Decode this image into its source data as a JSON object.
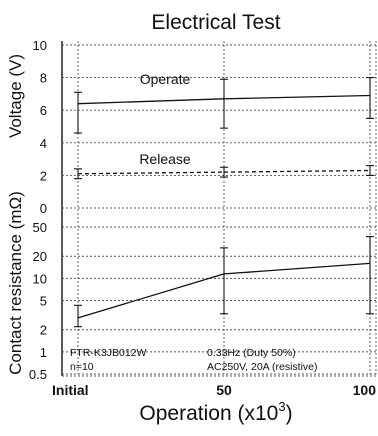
{
  "chart_data": [
    {
      "type": "line",
      "title": "Electrical Test",
      "ylabel": "Voltage (V)",
      "ylim": [
        0,
        10
      ],
      "yticks": [
        "0",
        "2",
        "4",
        "6",
        "8",
        "10"
      ],
      "x": [
        0,
        50,
        100
      ],
      "x_tick_labels": [
        "Initial",
        "50",
        "100"
      ],
      "xlabel_main": "Operation (x10",
      "xlabel_sup": "3",
      "xlabel_close": ")",
      "grid": true,
      "series": [
        {
          "name": "Operate",
          "style": "solid",
          "values": [
            6.4,
            6.7,
            6.9
          ],
          "err_low": [
            4.6,
            4.9,
            5.5
          ],
          "err_high": [
            7.1,
            7.9,
            8.0
          ]
        },
        {
          "name": "Release",
          "style": "dashed",
          "values": [
            2.1,
            2.2,
            2.3
          ],
          "err_low": [
            1.8,
            1.9,
            2.0
          ],
          "err_high": [
            2.4,
            2.5,
            2.6
          ]
        }
      ]
    },
    {
      "type": "line",
      "ylabel": "Contact resistance (mΩ)",
      "yscale": "log",
      "ylim": [
        0.5,
        50
      ],
      "yticks": [
        {
          "value": 50,
          "label": "50"
        },
        {
          "value": 20,
          "label": "20"
        },
        {
          "value": 10,
          "label": "10"
        },
        {
          "value": 5,
          "label": "5"
        },
        {
          "value": 2,
          "label": "2"
        },
        {
          "value": 1,
          "label": "1"
        },
        {
          "value": 0.5,
          "label": "0.5"
        }
      ],
      "x": [
        0,
        50,
        100
      ],
      "grid": true,
      "series": [
        {
          "style": "solid",
          "values": [
            2.9,
            11.5,
            16.0
          ],
          "err_low": [
            2.2,
            3.3,
            3.3
          ],
          "err_high": [
            4.3,
            26.0,
            37.0
          ]
        }
      ],
      "annotations": {
        "model": "FTR-K3JB012W",
        "n": "n=10",
        "frequency": "0.33Hz  (Duty 50%)",
        "load": "AC250V, 20A (resistive)"
      }
    }
  ]
}
